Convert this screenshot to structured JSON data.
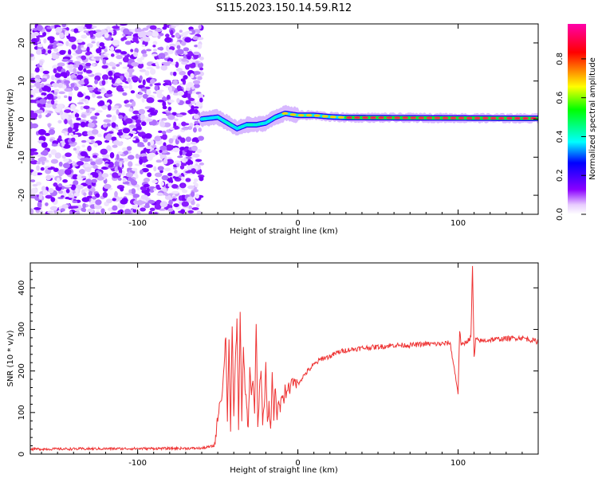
{
  "figure_title": "S115.2023.150.14.59.R12",
  "chart_data": [
    {
      "type": "heatmap",
      "xlabel": "Height of straight line (km)",
      "ylabel": "Frequency (Hz)",
      "xlim": [
        -167,
        150
      ],
      "ylim": [
        -25,
        25
      ],
      "x_ticks": [
        -100,
        0,
        100
      ],
      "y_ticks": [
        -20,
        -10,
        0,
        10,
        20
      ],
      "noise_region_x": [
        -167,
        -60
      ],
      "signal_start_x": -60,
      "frequency_trace": [
        {
          "x": -60,
          "y": 0.0
        },
        {
          "x": -50,
          "y": 0.5
        },
        {
          "x": -44,
          "y": -1.0
        },
        {
          "x": -38,
          "y": -2.5
        },
        {
          "x": -32,
          "y": -1.5
        },
        {
          "x": -26,
          "y": -1.5
        },
        {
          "x": -20,
          "y": -1.0
        },
        {
          "x": -14,
          "y": 0.5
        },
        {
          "x": -8,
          "y": 1.5
        },
        {
          "x": 0,
          "y": 1.0
        },
        {
          "x": 10,
          "y": 1.0
        },
        {
          "x": 20,
          "y": 0.6
        },
        {
          "x": 30,
          "y": 0.4
        },
        {
          "x": 150,
          "y": 0.2
        }
      ],
      "colorbar": {
        "label": "Normalized spectral amplitude",
        "range": [
          0,
          0.98
        ],
        "ticks": [
          0.0,
          0.2,
          0.4,
          0.6,
          0.8
        ],
        "tick_labels": [
          "0.0",
          "0.2",
          "0.4",
          "0.6",
          "0.8"
        ],
        "colors": [
          "#ffffff",
          "#8a00ff",
          "#0000ff",
          "#00ffff",
          "#00ff00",
          "#ffff00",
          "#ff0000",
          "#ff00aa"
        ]
      }
    },
    {
      "type": "line",
      "xlabel": "Height of straight line (km)",
      "ylabel": "SNR (10 * v/v)",
      "xlim": [
        -167,
        150
      ],
      "ylim": [
        0,
        460
      ],
      "x_ticks": [
        -100,
        0,
        100
      ],
      "y_ticks": [
        0,
        100,
        200,
        300,
        400
      ],
      "series": [
        {
          "color": "#ee3333",
          "x": [
            -167,
            -60,
            -52,
            -49,
            -47,
            -45,
            -44,
            -43,
            -42,
            -41,
            -40,
            -39,
            -38,
            -37,
            -36,
            -35,
            -34,
            -33,
            -32,
            -31,
            -30,
            -29,
            -28,
            -27,
            -26,
            -25,
            -24,
            -23,
            -22,
            -21,
            -20,
            -19,
            -18,
            -17,
            -16,
            -15,
            -14,
            -13,
            -12,
            -11,
            -10,
            -9,
            -8,
            -7,
            -6,
            -5,
            -4,
            -3,
            -2,
            -1,
            0,
            5,
            10,
            15,
            20,
            25,
            30,
            40,
            50,
            60,
            70,
            80,
            90,
            95,
            100,
            101,
            102,
            105,
            108,
            109,
            110,
            111,
            115,
            120,
            130,
            140,
            150
          ],
          "values": [
            12,
            14,
            20,
            120,
            150,
            290,
            80,
            280,
            60,
            300,
            100,
            220,
            320,
            70,
            340,
            90,
            250,
            160,
            120,
            60,
            200,
            150,
            180,
            90,
            320,
            60,
            150,
            200,
            80,
            110,
            220,
            70,
            120,
            50,
            200,
            90,
            170,
            80,
            130,
            100,
            150,
            120,
            160,
            140,
            170,
            150,
            190,
            160,
            180,
            170,
            170,
            195,
            215,
            230,
            235,
            245,
            250,
            255,
            258,
            262,
            262,
            265,
            265,
            268,
            148,
            300,
            260,
            270,
            280,
            450,
            230,
            275,
            272,
            275,
            278,
            280,
            270
          ]
        }
      ]
    }
  ]
}
